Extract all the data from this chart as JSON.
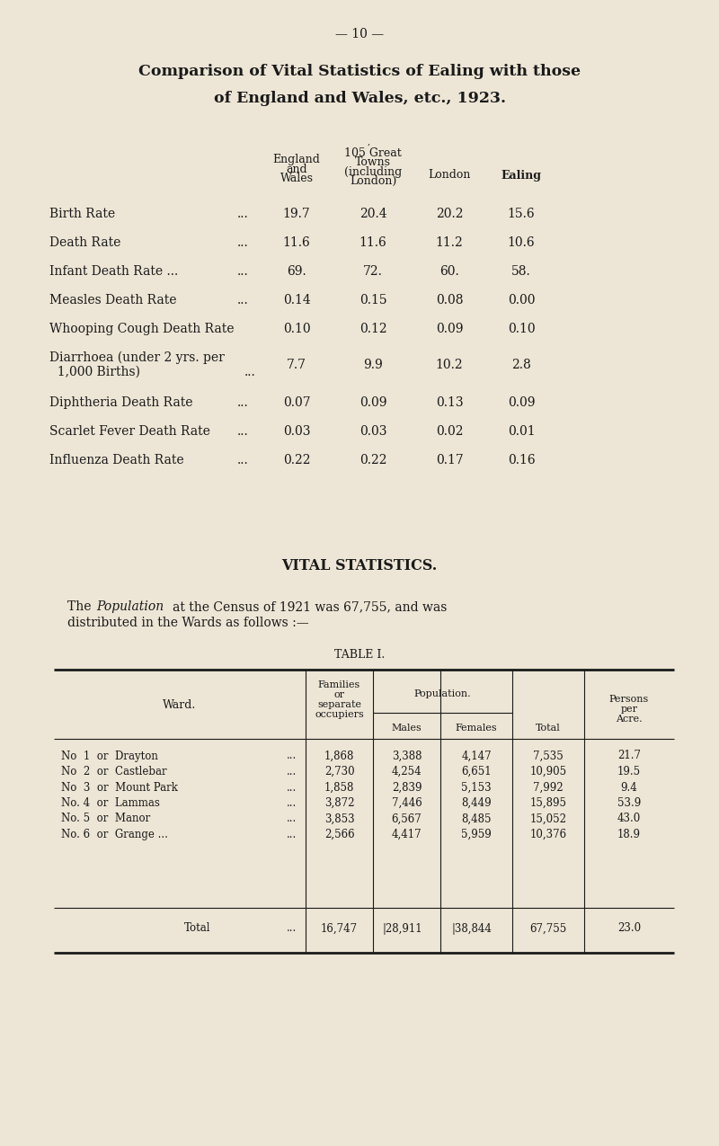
{
  "page_number": "— 10 —",
  "title_line1": "Comparison of Vital Statistics of Ealing with those",
  "title_line2": "of England and Wales, etc., 1923.",
  "bg_color": "#ede5d5",
  "text_color": "#1a1a1a",
  "stats_rows": [
    {
      "label": "Birth Rate",
      "dots": "...",
      "dots2": "...",
      "values": [
        "19.7",
        "20.4",
        "20.2",
        "15.6"
      ],
      "two_line": false
    },
    {
      "label": "Death Rate",
      "dots": "...",
      "dots2": "...",
      "values": [
        "11.6",
        "11.6",
        "11.2",
        "10.6"
      ],
      "two_line": false
    },
    {
      "label": "Infant Death Rate ...",
      "dots": "...",
      "dots2": "",
      "values": [
        "69.",
        "72.",
        "60.",
        "58."
      ],
      "two_line": false
    },
    {
      "label": "Measles Death Rate",
      "dots": "...",
      "dots2": "",
      "values": [
        "0.14",
        "0.15",
        "0.08",
        "0.00"
      ],
      "two_line": false
    },
    {
      "label": "Whooping Cough Death Rate",
      "dots": "",
      "dots2": "",
      "values": [
        "0.10",
        "0.12",
        "0.09",
        "0.10"
      ],
      "two_line": false
    },
    {
      "label": "Diarrhoea (under 2 yrs. per",
      "label2": "  1,000 Births)",
      "dots": "",
      "dots2": "...",
      "values": [
        "7.7",
        "9.9",
        "10.2",
        "2.8"
      ],
      "two_line": true
    },
    {
      "label": "Diphtheria Death Rate",
      "dots": "...",
      "dots2": "",
      "values": [
        "0.07",
        "0.09",
        "0.13",
        "0.09"
      ],
      "two_line": false
    },
    {
      "label": "Scarlet Fever Death Rate",
      "dots": "...",
      "dots2": "",
      "values": [
        "0.03",
        "0.03",
        "0.02",
        "0.01"
      ],
      "two_line": false
    },
    {
      "label": "Influenza Death Rate",
      "dots": "...",
      "dots2": "",
      "values": [
        "0.22",
        "0.22",
        "0.17",
        "0.16"
      ],
      "two_line": false
    }
  ],
  "section_title": "VITAL STATISTICS.",
  "table_title": "TABLE I.",
  "table_rows": [
    {
      "ward": "No  1  or  Drayton",
      "dots": "...",
      "families": "1,868",
      "males": "3,388",
      "females": "4,147",
      "total": "7,535",
      "persons": "21.7"
    },
    {
      "ward": "No  2  or  Castlebar",
      "dots": "...",
      "families": "2,730",
      "males": "4,254",
      "females": "6,651",
      "total": "10,905",
      "persons": "19.5"
    },
    {
      "ward": "No  3  or  Mount Park",
      "dots": "...",
      "families": "1,858",
      "males": "2,839",
      "females": "5,153",
      "total": "7,992",
      "persons": "9.4"
    },
    {
      "ward": "No. 4  or  Lammas",
      "dots": "...",
      "families": "3,872",
      "males": "7,446",
      "females": "8,449",
      "total": "15,895",
      "persons": "53.9"
    },
    {
      "ward": "No. 5  or  Manor",
      "dots": "...",
      "families": "3,853",
      "males": "6,567",
      "females": "8,485",
      "total": "15,052",
      "persons": "43.0"
    },
    {
      "ward": "No. 6  or  Grange ...",
      "dots": "...",
      "families": "2,566",
      "males": "4,417",
      "females": "5,959",
      "total": "10,376",
      "persons": "18.9"
    }
  ],
  "table_total_row": {
    "ward": "Total",
    "dots": "...",
    "families": "16,747",
    "males": "28,911",
    "females": "38,844",
    "total": "67,755",
    "persons": "23.0"
  }
}
